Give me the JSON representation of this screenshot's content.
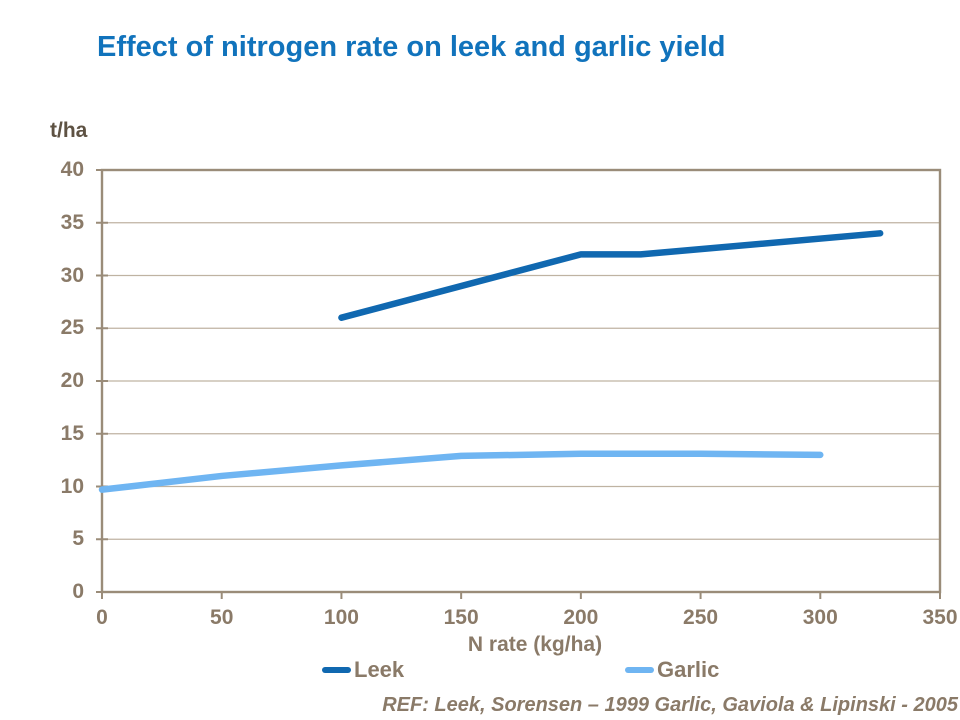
{
  "title": "Effect of nitrogen rate on leek and garlic yield",
  "footer": {
    "ref": "REF: Leek, Sorensen – 1999 Garlic, Gaviola & Lipinski - 2005"
  },
  "colors": {
    "title_blue": "#1173BC",
    "leek_line": "#1068B0",
    "garlic_line": "#6FB5F2",
    "tick_text_brown": "#8A7A68",
    "y_axis_title_brown": "#5E5243",
    "x_axis_title_brown": "#8A7A68",
    "ref_text_brown": "#8A7A68",
    "gridline": "#BFB3A2",
    "axis_border": "#9A8C79",
    "background": "#FFFFFF"
  },
  "chart_data": {
    "type": "line",
    "title": "Effect of nitrogen rate on leek and garlic yield",
    "x_axis_label": "N rate (kg/ha)",
    "y_axis_label": "t/ha",
    "xlim": [
      0,
      350
    ],
    "ylim": [
      0,
      40
    ],
    "x_ticks": [
      0,
      50,
      100,
      150,
      200,
      250,
      300,
      350
    ],
    "y_ticks": [
      0,
      5,
      10,
      15,
      20,
      25,
      30,
      35,
      40
    ],
    "grid": "horizontal",
    "legend_position": "bottom",
    "series": [
      {
        "name": "Leek",
        "color": "#1068B0",
        "points": [
          [
            100,
            26
          ],
          [
            200,
            32
          ],
          [
            225,
            32
          ],
          [
            325,
            34
          ]
        ]
      },
      {
        "name": "Garlic",
        "color": "#6FB5F2",
        "points": [
          [
            0,
            9.7
          ],
          [
            50,
            11
          ],
          [
            100,
            12
          ],
          [
            150,
            12.9
          ],
          [
            200,
            13.1
          ],
          [
            250,
            13.1
          ],
          [
            300,
            13
          ]
        ]
      }
    ]
  }
}
